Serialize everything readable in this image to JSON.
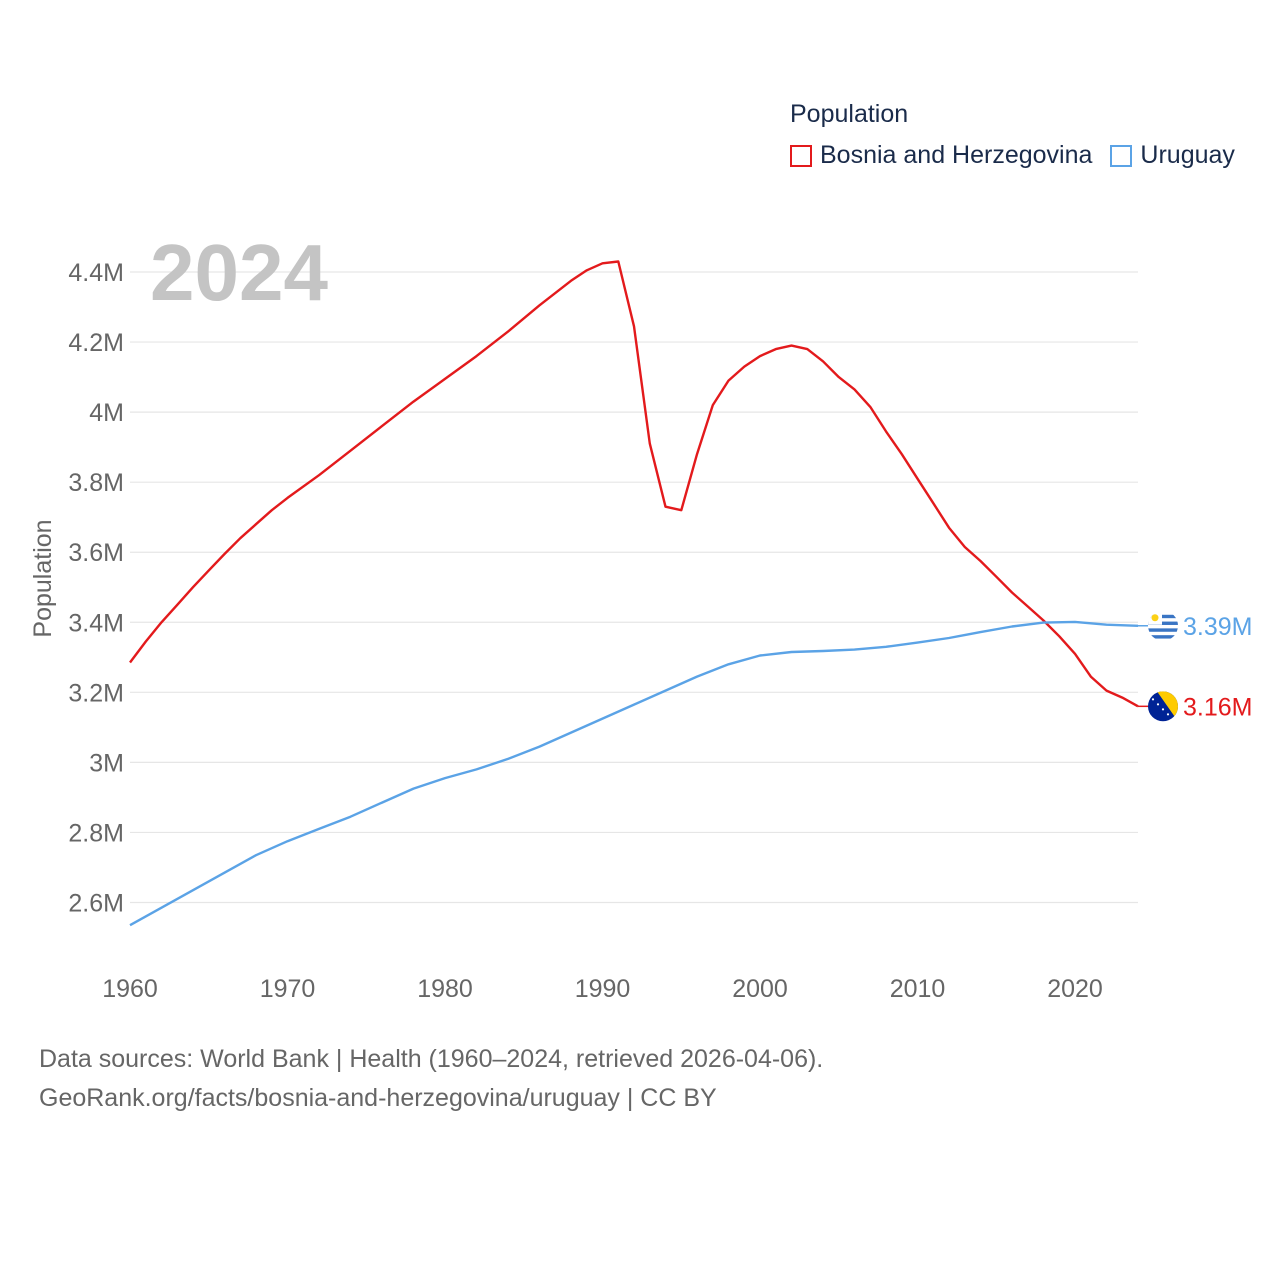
{
  "legend": {
    "title": "Population",
    "items": [
      {
        "label": "Bosnia and Herzegovina",
        "color": "#e31a1c"
      },
      {
        "label": "Uruguay",
        "color": "#5ba3e6"
      }
    ]
  },
  "footer": {
    "line1": "Data sources: World Bank | Health (1960–2024, retrieved 2026-04-06).",
    "line2": "GeoRank.org/facts/bosnia-and-herzegovina/uruguay | CC BY"
  },
  "chart_data": {
    "type": "line",
    "year_label": "2024",
    "ylabel": "Population",
    "xlabel": "",
    "xlim": [
      1960,
      2024
    ],
    "ylim": [
      2.45,
      4.52
    ],
    "grid": true,
    "y_ticks": [
      {
        "value": 2.6,
        "label": "2.6M"
      },
      {
        "value": 2.8,
        "label": "2.8M"
      },
      {
        "value": 3.0,
        "label": "3M"
      },
      {
        "value": 3.2,
        "label": "3.2M"
      },
      {
        "value": 3.4,
        "label": "3.4M"
      },
      {
        "value": 3.6,
        "label": "3.6M"
      },
      {
        "value": 3.8,
        "label": "3.8M"
      },
      {
        "value": 4.0,
        "label": "4M"
      },
      {
        "value": 4.2,
        "label": "4.2M"
      },
      {
        "value": 4.4,
        "label": "4.4M"
      }
    ],
    "x_ticks": [
      {
        "value": 1960,
        "label": "1960"
      },
      {
        "value": 1970,
        "label": "1970"
      },
      {
        "value": 1980,
        "label": "1980"
      },
      {
        "value": 1990,
        "label": "1990"
      },
      {
        "value": 2000,
        "label": "2000"
      },
      {
        "value": 2010,
        "label": "2010"
      },
      {
        "value": 2020,
        "label": "2020"
      }
    ],
    "series": [
      {
        "name": "Bosnia and Herzegovina",
        "color": "#e31a1c",
        "end_label": "3.16M",
        "flag": "bosnia-flag-icon",
        "points": [
          [
            1960,
            3.285
          ],
          [
            1961,
            3.345
          ],
          [
            1962,
            3.4
          ],
          [
            1963,
            3.45
          ],
          [
            1964,
            3.5
          ],
          [
            1965,
            3.548
          ],
          [
            1966,
            3.595
          ],
          [
            1967,
            3.64
          ],
          [
            1968,
            3.68
          ],
          [
            1969,
            3.72
          ],
          [
            1970,
            3.755
          ],
          [
            1972,
            3.82
          ],
          [
            1974,
            3.89
          ],
          [
            1976,
            3.96
          ],
          [
            1978,
            4.03
          ],
          [
            1980,
            4.095
          ],
          [
            1982,
            4.16
          ],
          [
            1984,
            4.23
          ],
          [
            1986,
            4.305
          ],
          [
            1988,
            4.375
          ],
          [
            1989,
            4.405
          ],
          [
            1990,
            4.425
          ],
          [
            1991,
            4.43
          ],
          [
            1992,
            4.245
          ],
          [
            1993,
            3.91
          ],
          [
            1994,
            3.73
          ],
          [
            1995,
            3.72
          ],
          [
            1996,
            3.88
          ],
          [
            1997,
            4.02
          ],
          [
            1998,
            4.09
          ],
          [
            1999,
            4.13
          ],
          [
            2000,
            4.16
          ],
          [
            2001,
            4.18
          ],
          [
            2002,
            4.19
          ],
          [
            2003,
            4.18
          ],
          [
            2004,
            4.145
          ],
          [
            2005,
            4.1
          ],
          [
            2006,
            4.065
          ],
          [
            2007,
            4.015
          ],
          [
            2008,
            3.945
          ],
          [
            2009,
            3.88
          ],
          [
            2010,
            3.81
          ],
          [
            2011,
            3.74
          ],
          [
            2012,
            3.67
          ],
          [
            2013,
            3.615
          ],
          [
            2014,
            3.575
          ],
          [
            2015,
            3.53
          ],
          [
            2016,
            3.485
          ],
          [
            2017,
            3.445
          ],
          [
            2018,
            3.405
          ],
          [
            2019,
            3.36
          ],
          [
            2020,
            3.31
          ],
          [
            2021,
            3.245
          ],
          [
            2022,
            3.205
          ],
          [
            2023,
            3.185
          ],
          [
            2024,
            3.16
          ]
        ]
      },
      {
        "name": "Uruguay",
        "color": "#5ba3e6",
        "end_label": "3.39M",
        "flag": "uruguay-flag-icon",
        "points": [
          [
            1960,
            2.535
          ],
          [
            1962,
            2.585
          ],
          [
            1964,
            2.635
          ],
          [
            1966,
            2.685
          ],
          [
            1968,
            2.735
          ],
          [
            1970,
            2.775
          ],
          [
            1972,
            2.81
          ],
          [
            1974,
            2.845
          ],
          [
            1976,
            2.885
          ],
          [
            1978,
            2.925
          ],
          [
            1980,
            2.955
          ],
          [
            1982,
            2.98
          ],
          [
            1984,
            3.01
          ],
          [
            1986,
            3.045
          ],
          [
            1988,
            3.085
          ],
          [
            1990,
            3.125
          ],
          [
            1992,
            3.165
          ],
          [
            1994,
            3.205
          ],
          [
            1996,
            3.245
          ],
          [
            1998,
            3.28
          ],
          [
            2000,
            3.305
          ],
          [
            2002,
            3.315
          ],
          [
            2004,
            3.318
          ],
          [
            2006,
            3.322
          ],
          [
            2008,
            3.33
          ],
          [
            2010,
            3.342
          ],
          [
            2012,
            3.355
          ],
          [
            2014,
            3.372
          ],
          [
            2016,
            3.388
          ],
          [
            2018,
            3.399
          ],
          [
            2020,
            3.401
          ],
          [
            2022,
            3.393
          ],
          [
            2024,
            3.39
          ]
        ]
      }
    ]
  }
}
